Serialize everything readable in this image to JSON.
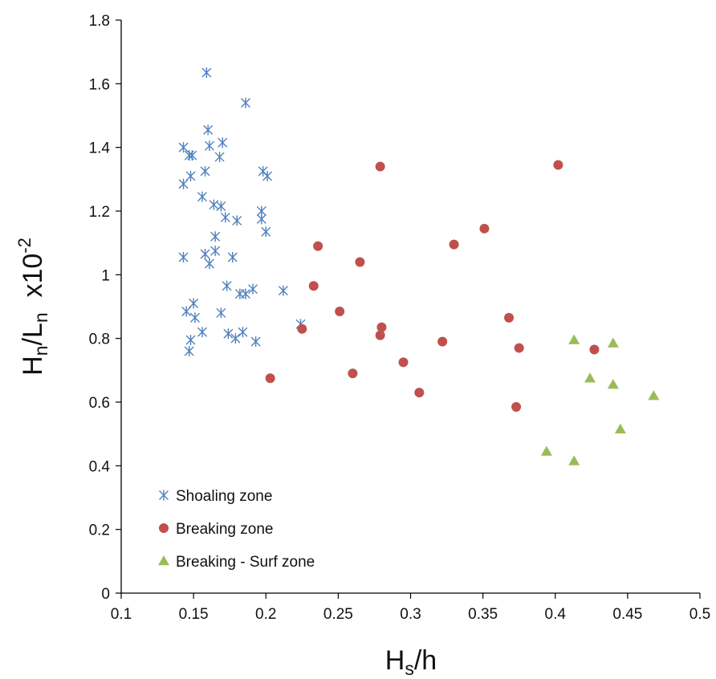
{
  "chart_data": {
    "type": "scatter",
    "xlabel": {
      "main": "H",
      "sub": "s",
      "tail": "/h"
    },
    "ylabel": {
      "h": "H",
      "hsub": "n",
      "mid": "/L",
      "lsub": "n",
      "tail": "  x10",
      "sup": "-2"
    },
    "xlim": [
      0.1,
      0.5
    ],
    "ylim": [
      0,
      1.8
    ],
    "x_ticks": [
      "0.1",
      "0.15",
      "0.2",
      "0.25",
      "0.3",
      "0.35",
      "0.4",
      "0.45",
      "0.5"
    ],
    "y_ticks": [
      "0",
      "0.2",
      "0.4",
      "0.6",
      "0.8",
      "1",
      "1.2",
      "1.4",
      "1.6",
      "1.8"
    ],
    "grid": false,
    "legend_position": "bottom-left",
    "series": [
      {
        "name": "Shoaling zone",
        "marker": "asterisk",
        "color": "#4f81bd",
        "points": [
          [
            0.159,
            1.635
          ],
          [
            0.186,
            1.54
          ],
          [
            0.16,
            1.455
          ],
          [
            0.17,
            1.415
          ],
          [
            0.161,
            1.405
          ],
          [
            0.143,
            1.4
          ],
          [
            0.147,
            1.375
          ],
          [
            0.149,
            1.375
          ],
          [
            0.168,
            1.37
          ],
          [
            0.158,
            1.325
          ],
          [
            0.198,
            1.325
          ],
          [
            0.148,
            1.31
          ],
          [
            0.201,
            1.31
          ],
          [
            0.143,
            1.285
          ],
          [
            0.156,
            1.245
          ],
          [
            0.164,
            1.22
          ],
          [
            0.169,
            1.215
          ],
          [
            0.197,
            1.2
          ],
          [
            0.172,
            1.18
          ],
          [
            0.197,
            1.175
          ],
          [
            0.18,
            1.17
          ],
          [
            0.2,
            1.135
          ],
          [
            0.165,
            1.12
          ],
          [
            0.165,
            1.075
          ],
          [
            0.158,
            1.065
          ],
          [
            0.143,
            1.055
          ],
          [
            0.177,
            1.055
          ],
          [
            0.161,
            1.035
          ],
          [
            0.173,
            0.965
          ],
          [
            0.191,
            0.955
          ],
          [
            0.212,
            0.95
          ],
          [
            0.182,
            0.94
          ],
          [
            0.186,
            0.94
          ],
          [
            0.15,
            0.91
          ],
          [
            0.145,
            0.885
          ],
          [
            0.169,
            0.88
          ],
          [
            0.151,
            0.865
          ],
          [
            0.224,
            0.845
          ],
          [
            0.156,
            0.82
          ],
          [
            0.184,
            0.82
          ],
          [
            0.174,
            0.815
          ],
          [
            0.179,
            0.8
          ],
          [
            0.148,
            0.795
          ],
          [
            0.193,
            0.79
          ],
          [
            0.147,
            0.76
          ]
        ]
      },
      {
        "name": "Breaking zone",
        "marker": "circle",
        "color": "#c0504d",
        "points": [
          [
            0.279,
            1.34
          ],
          [
            0.402,
            1.345
          ],
          [
            0.351,
            1.145
          ],
          [
            0.33,
            1.095
          ],
          [
            0.236,
            1.09
          ],
          [
            0.265,
            1.04
          ],
          [
            0.233,
            0.965
          ],
          [
            0.251,
            0.885
          ],
          [
            0.368,
            0.865
          ],
          [
            0.28,
            0.835
          ],
          [
            0.225,
            0.83
          ],
          [
            0.279,
            0.81
          ],
          [
            0.322,
            0.79
          ],
          [
            0.375,
            0.77
          ],
          [
            0.427,
            0.765
          ],
          [
            0.295,
            0.725
          ],
          [
            0.26,
            0.69
          ],
          [
            0.203,
            0.675
          ],
          [
            0.306,
            0.63
          ],
          [
            0.373,
            0.585
          ]
        ]
      },
      {
        "name": "Breaking - Surf zone",
        "marker": "triangle",
        "color": "#9bbb59",
        "points": [
          [
            0.413,
            0.795
          ],
          [
            0.44,
            0.785
          ],
          [
            0.424,
            0.675
          ],
          [
            0.44,
            0.655
          ],
          [
            0.468,
            0.62
          ],
          [
            0.445,
            0.515
          ],
          [
            0.394,
            0.445
          ],
          [
            0.413,
            0.415
          ]
        ]
      }
    ]
  }
}
